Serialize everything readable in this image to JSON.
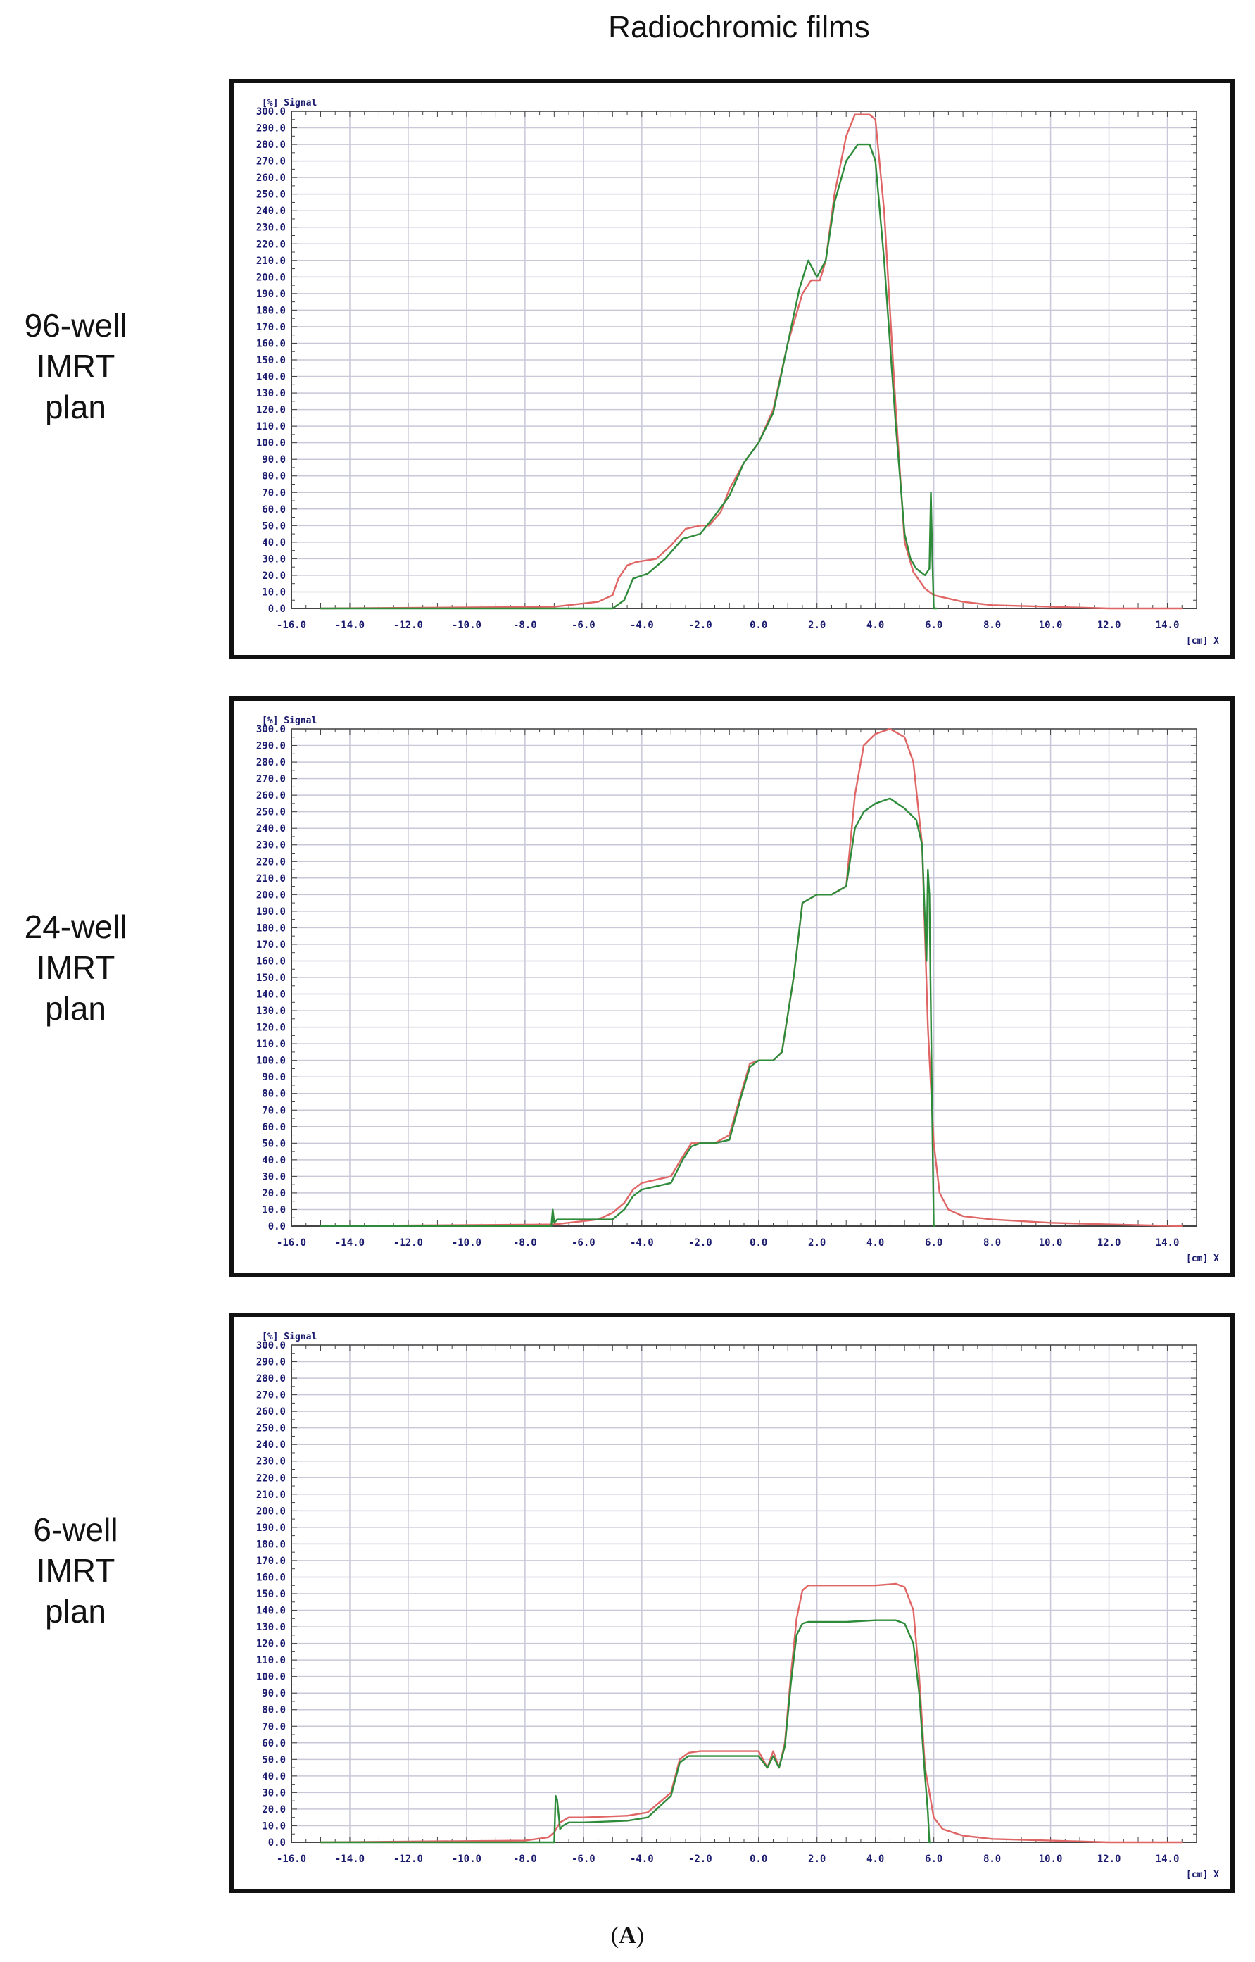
{
  "figure": {
    "heading": "Radiochromic films",
    "caption_open": "(",
    "caption_letter": "A",
    "caption_close": ")",
    "colors": {
      "series_planned": "#e06666",
      "series_measured": "#2e8b3a",
      "grid": "#c8c8d8",
      "axis_text": "#1a1a6e"
    }
  },
  "chart_data": [
    {
      "type": "line",
      "row_label": [
        "96-well",
        "IMRT",
        "plan"
      ],
      "y_axis_title": "[%] Signal",
      "x_axis_title": "[cm] X",
      "xlim": [
        -16,
        15
      ],
      "ylim": [
        0,
        300
      ],
      "x_ticks": [
        -16,
        -14,
        -12,
        -10,
        -8,
        -6,
        -4,
        -2,
        0,
        2,
        4,
        6,
        8,
        10,
        12,
        14
      ],
      "y_ticks": [
        0,
        10,
        20,
        30,
        40,
        50,
        60,
        70,
        80,
        90,
        100,
        110,
        120,
        130,
        140,
        150,
        160,
        170,
        180,
        190,
        200,
        210,
        220,
        230,
        240,
        250,
        260,
        270,
        280,
        290,
        300
      ],
      "grid": true,
      "series": [
        {
          "color": "#e06666",
          "x": [
            -15.0,
            -7.0,
            -5.5,
            -5.0,
            -4.8,
            -4.5,
            -4.2,
            -3.5,
            -3.0,
            -2.5,
            -2.0,
            -1.7,
            -1.3,
            -1.0,
            -0.5,
            0.0,
            0.5,
            1.0,
            1.5,
            1.8,
            2.1,
            2.3,
            2.6,
            3.0,
            3.3,
            3.8,
            4.0,
            4.3,
            4.7,
            5.0,
            5.3,
            5.7,
            6.0,
            7.0,
            8.0,
            10.0,
            12.0,
            14.5
          ],
          "y": [
            0,
            1,
            4,
            8,
            18,
            26,
            28,
            30,
            38,
            48,
            50,
            50,
            58,
            72,
            88,
            100,
            120,
            160,
            190,
            198,
            198,
            210,
            250,
            285,
            298,
            298,
            295,
            240,
            120,
            40,
            22,
            12,
            8,
            4,
            2,
            1,
            0,
            0
          ]
        },
        {
          "color": "#2e8b3a",
          "x": [
            -15.0,
            -5.0,
            -4.6,
            -4.3,
            -3.8,
            -3.2,
            -2.6,
            -2.0,
            -1.5,
            -1.0,
            -0.5,
            0.0,
            0.5,
            1.0,
            1.4,
            1.7,
            2.0,
            2.3,
            2.6,
            3.0,
            3.4,
            3.8,
            4.0,
            4.3,
            4.7,
            5.0,
            5.2,
            5.4,
            5.7,
            5.85,
            5.9,
            5.95,
            6.0,
            6.1
          ],
          "y": [
            0,
            0,
            5,
            18,
            21,
            30,
            42,
            45,
            56,
            68,
            88,
            100,
            118,
            160,
            193,
            210,
            200,
            210,
            245,
            270,
            280,
            280,
            270,
            210,
            110,
            45,
            30,
            24,
            20,
            24,
            70,
            30,
            0,
            0
          ]
        }
      ]
    },
    {
      "type": "line",
      "row_label": [
        "24-well",
        "IMRT",
        "plan"
      ],
      "y_axis_title": "[%] Signal",
      "x_axis_title": "[cm] X",
      "xlim": [
        -16,
        15
      ],
      "ylim": [
        0,
        300
      ],
      "x_ticks": [
        -16,
        -14,
        -12,
        -10,
        -8,
        -6,
        -4,
        -2,
        0,
        2,
        4,
        6,
        8,
        10,
        12,
        14
      ],
      "y_ticks": [
        0,
        10,
        20,
        30,
        40,
        50,
        60,
        70,
        80,
        90,
        100,
        110,
        120,
        130,
        140,
        150,
        160,
        170,
        180,
        190,
        200,
        210,
        220,
        230,
        240,
        250,
        260,
        270,
        280,
        290,
        300
      ],
      "grid": true,
      "series": [
        {
          "color": "#e06666",
          "x": [
            -15.0,
            -7.0,
            -5.5,
            -5.0,
            -4.6,
            -4.3,
            -4.0,
            -3.5,
            -3.0,
            -2.6,
            -2.3,
            -2.0,
            -1.5,
            -1.0,
            -0.6,
            -0.3,
            0.0,
            0.5,
            0.8,
            1.2,
            1.5,
            2.0,
            2.5,
            3.0,
            3.3,
            3.6,
            4.0,
            4.5,
            5.0,
            5.3,
            5.6,
            5.8,
            6.0,
            6.2,
            6.5,
            7.0,
            8.0,
            10.0,
            12.0,
            14.5
          ],
          "y": [
            0,
            1,
            4,
            8,
            14,
            22,
            26,
            28,
            30,
            42,
            50,
            50,
            50,
            55,
            80,
            98,
            100,
            100,
            105,
            150,
            195,
            200,
            200,
            205,
            260,
            290,
            297,
            300,
            295,
            280,
            230,
            120,
            50,
            20,
            10,
            6,
            4,
            2,
            1,
            0
          ]
        },
        {
          "color": "#2e8b3a",
          "x": [
            -15.0,
            -7.1,
            -7.05,
            -7.0,
            -6.9,
            -5.0,
            -4.6,
            -4.3,
            -4.0,
            -3.5,
            -3.0,
            -2.6,
            -2.3,
            -2.0,
            -1.5,
            -1.0,
            -0.6,
            -0.3,
            0.0,
            0.5,
            0.8,
            1.2,
            1.5,
            2.0,
            2.5,
            3.0,
            3.3,
            3.6,
            4.0,
            4.5,
            5.0,
            5.4,
            5.6,
            5.75,
            5.8,
            5.85,
            5.9,
            5.95,
            6.0,
            6.05
          ],
          "y": [
            0,
            0,
            10,
            2,
            4,
            4,
            10,
            18,
            22,
            24,
            26,
            40,
            48,
            50,
            50,
            52,
            78,
            96,
            100,
            100,
            105,
            150,
            195,
            200,
            200,
            205,
            240,
            250,
            255,
            258,
            252,
            245,
            230,
            160,
            215,
            200,
            130,
            60,
            0,
            0
          ]
        }
      ]
    },
    {
      "type": "line",
      "row_label": [
        "6-well",
        "IMRT",
        "plan"
      ],
      "y_axis_title": "[%] Signal",
      "x_axis_title": "[cm] X",
      "xlim": [
        -16,
        15
      ],
      "ylim": [
        0,
        300
      ],
      "x_ticks": [
        -16,
        -14,
        -12,
        -10,
        -8,
        -6,
        -4,
        -2,
        0,
        2,
        4,
        6,
        8,
        10,
        12,
        14
      ],
      "y_ticks": [
        0,
        10,
        20,
        30,
        40,
        50,
        60,
        70,
        80,
        90,
        100,
        110,
        120,
        130,
        140,
        150,
        160,
        170,
        180,
        190,
        200,
        210,
        220,
        230,
        240,
        250,
        260,
        270,
        280,
        290,
        300
      ],
      "grid": true,
      "series": [
        {
          "color": "#e06666",
          "x": [
            -15.0,
            -8.0,
            -7.2,
            -7.0,
            -6.8,
            -6.5,
            -6.0,
            -4.5,
            -3.8,
            -3.0,
            -2.7,
            -2.4,
            -2.0,
            -1.0,
            0.0,
            0.3,
            0.5,
            0.7,
            0.9,
            1.1,
            1.3,
            1.5,
            1.7,
            2.0,
            3.0,
            4.0,
            4.7,
            5.0,
            5.3,
            5.5,
            5.7,
            6.0,
            6.3,
            7.0,
            8.0,
            10.0,
            12.0,
            14.5
          ],
          "y": [
            0,
            1,
            3,
            6,
            12,
            15,
            15,
            16,
            18,
            30,
            50,
            54,
            55,
            55,
            55,
            45,
            55,
            45,
            60,
            100,
            135,
            152,
            155,
            155,
            155,
            155,
            156,
            154,
            140,
            100,
            45,
            15,
            8,
            4,
            2,
            1,
            0,
            0
          ]
        },
        {
          "color": "#2e8b3a",
          "x": [
            -15.0,
            -7.0,
            -6.95,
            -6.9,
            -6.8,
            -6.7,
            -6.5,
            -6.0,
            -4.5,
            -3.8,
            -3.0,
            -2.7,
            -2.4,
            -2.0,
            -1.0,
            0.0,
            0.3,
            0.5,
            0.7,
            0.9,
            1.1,
            1.3,
            1.5,
            1.7,
            2.0,
            3.0,
            4.0,
            4.7,
            5.0,
            5.3,
            5.5,
            5.7,
            5.8,
            5.85,
            5.9
          ],
          "y": [
            0,
            0,
            28,
            26,
            8,
            10,
            12,
            12,
            13,
            15,
            28,
            48,
            52,
            52,
            52,
            52,
            45,
            52,
            45,
            58,
            95,
            125,
            132,
            133,
            133,
            133,
            134,
            134,
            132,
            120,
            90,
            40,
            18,
            0,
            0
          ]
        }
      ]
    }
  ]
}
